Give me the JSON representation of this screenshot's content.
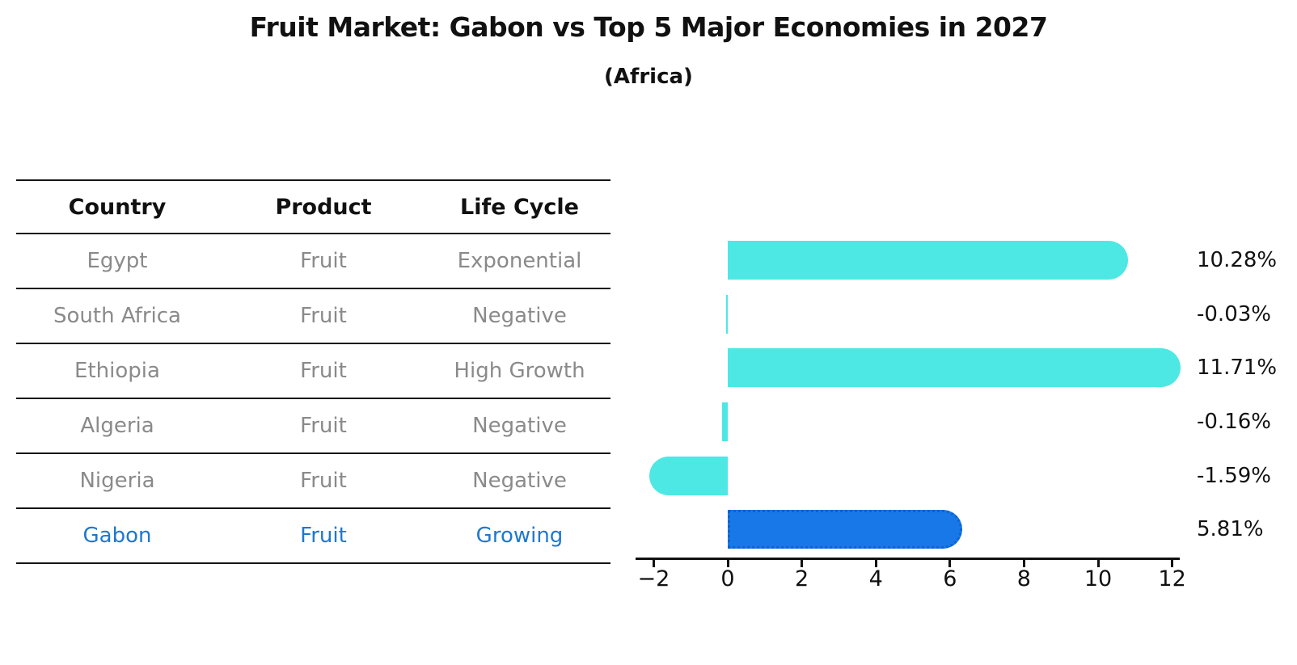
{
  "title": "Fruit Market: Gabon vs Top 5 Major Economies in 2027",
  "subtitle": "(Africa)",
  "table": {
    "headers": [
      "Country",
      "Product",
      "Life Cycle"
    ],
    "rows": [
      {
        "country": "Egypt",
        "product": "Fruit",
        "life_cycle": "Exponential",
        "highlight": false
      },
      {
        "country": "South Africa",
        "product": "Fruit",
        "life_cycle": "Negative",
        "highlight": false
      },
      {
        "country": "Ethiopia",
        "product": "Fruit",
        "life_cycle": "High Growth",
        "highlight": false
      },
      {
        "country": "Algeria",
        "product": "Fruit",
        "life_cycle": "Negative",
        "highlight": false
      },
      {
        "country": "Nigeria",
        "product": "Fruit",
        "life_cycle": "Negative",
        "highlight": false
      },
      {
        "country": "Gabon",
        "product": "Fruit",
        "life_cycle": "Growing",
        "highlight": true
      }
    ]
  },
  "chart_data": {
    "type": "bar",
    "orientation": "horizontal",
    "title": "Fruit Market: Gabon vs Top 5 Major Economies in 2027",
    "subtitle": "(Africa)",
    "categories": [
      "Egypt",
      "South Africa",
      "Ethiopia",
      "Algeria",
      "Nigeria",
      "Gabon"
    ],
    "values": [
      10.28,
      -0.03,
      11.71,
      -0.16,
      -1.59,
      5.81
    ],
    "value_labels": [
      "10.28%",
      "-0.03%",
      "11.71%",
      "-0.16%",
      "-1.59%",
      "5.81%"
    ],
    "xlabel": "",
    "ylabel": "",
    "xlim": [
      -2.5,
      12.3
    ],
    "xticks": [
      -2,
      0,
      2,
      4,
      6,
      8,
      10,
      12
    ],
    "xtick_labels": [
      "−2",
      "0",
      "2",
      "4",
      "6",
      "8",
      "10",
      "12"
    ],
    "grid": false,
    "legend": false,
    "bar_color": "#4DE8E4",
    "highlight_color": "#1878E8",
    "highlight_border_color": "#0d63cf",
    "highlight_index": 5
  },
  "colors": {
    "text": "#111111",
    "muted_row_text": "#8a8a8a",
    "highlight_text": "#1f78cd",
    "bar_cyan": "#4DE8E4",
    "bar_blue": "#1878E8"
  }
}
